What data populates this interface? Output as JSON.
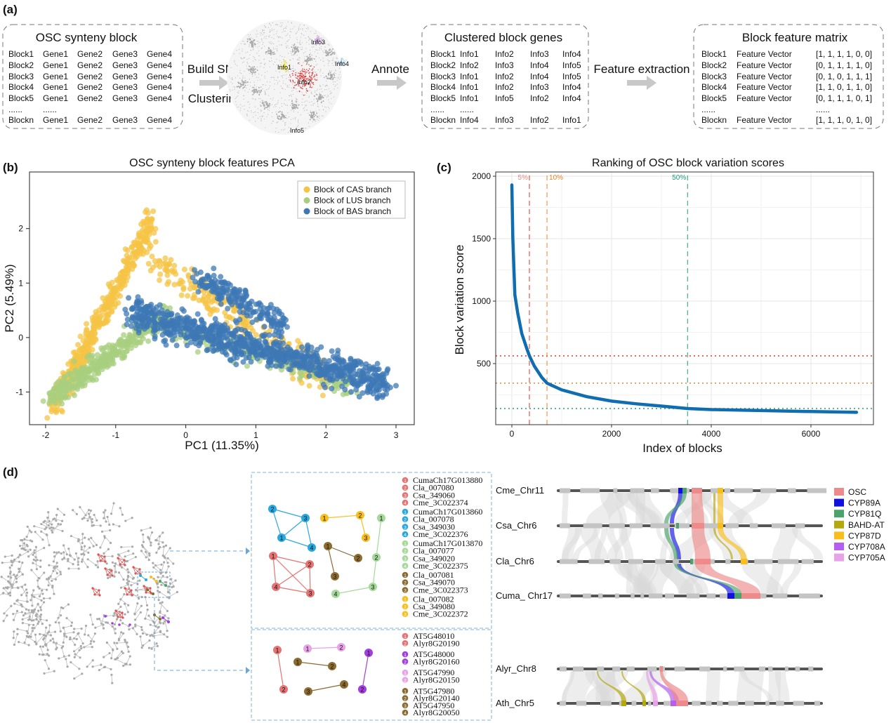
{
  "panel_labels": {
    "a": "(a)",
    "b": "(b)",
    "c": "(c)",
    "d": "(d)"
  },
  "panel_a": {
    "synteny_block": {
      "title": "OSC synteny block",
      "rows": [
        [
          "Block1",
          "Gene1",
          "Gene2",
          "Gene3",
          "Gene4"
        ],
        [
          "Block2",
          "Gene1",
          "Gene2",
          "Gene3",
          "Gene4"
        ],
        [
          "Block3",
          "Gene1",
          "Gene2",
          "Gene3",
          "Gene4"
        ],
        [
          "Block4",
          "Gene1",
          "Gene2",
          "Gene3",
          "Gene4"
        ],
        [
          "Block5",
          "Gene1",
          "Gene2",
          "Gene3",
          "Gene4"
        ],
        [
          "......",
          "......",
          "",
          "",
          ""
        ],
        [
          "Blockn",
          "Gene1",
          "Gene2",
          "Gene3",
          "Gene4"
        ]
      ]
    },
    "step1_top": "Build SNN",
    "step1_bottom": "Clustering",
    "network_labels": {
      "info3": "Info3",
      "info1": "Info1",
      "info4": "Info4",
      "info2": "info2",
      "info5": "Info5"
    },
    "step2": "Annote",
    "clustered": {
      "title": "Clustered block genes",
      "rows": [
        [
          "Block1",
          "Info1",
          "Info2",
          "Info3",
          "Info4"
        ],
        [
          "Block2",
          "Info2",
          "Info3",
          "Info4",
          "Info5"
        ],
        [
          "Block3",
          "Info1",
          "Info2",
          "Info4",
          "Info5"
        ],
        [
          "Block4",
          "Info1",
          "Info2",
          "Info3",
          "Info4"
        ],
        [
          "Block5",
          "Info1",
          "Info5",
          "Info2",
          "Info4"
        ],
        [
          "......",
          "......",
          "",
          "",
          ""
        ],
        [
          "Blockn",
          "Info4",
          "Info3",
          "Info2",
          "Info1"
        ]
      ]
    },
    "step3": "Feature extraction",
    "feature_matrix": {
      "title": "Block feature matrix",
      "rows": [
        [
          "Block1",
          "Feature Vector",
          "[1, 1, 1, 1, 0, 0]"
        ],
        [
          "Block2",
          "Feature Vector",
          "[0, 1, 1, 1, 1, 0]"
        ],
        [
          "Block3",
          "Feature Vector",
          "[0, 1, 0, 1, 1, 1]"
        ],
        [
          "Block4",
          "Feature Vector",
          "[1, 1, 0, 1, 1, 0]"
        ],
        [
          "Block5",
          "Feature Vector",
          "[0, 1, 1, 1, 0, 1]"
        ],
        [
          "......",
          "",
          "......"
        ],
        [
          "Blockn",
          "Feature Vector",
          "[1, 1, 1, 0, 1, 0]"
        ]
      ]
    }
  },
  "chart_data": [
    {
      "type": "scatter",
      "title": "OSC synteny block features PCA",
      "xlabel": "PC1 (11.35%)",
      "ylabel": "PC2 (5.49%)",
      "xlim": [
        -2.23,
        3.26
      ],
      "ylim": [
        -1.6,
        3.04
      ],
      "xticks": [
        -2,
        -1,
        0,
        1,
        2,
        3
      ],
      "yticks": [
        -1,
        0,
        1,
        2
      ],
      "grid": false,
      "legend_position": "top-right",
      "series": [
        {
          "name": "Block of CAS branch",
          "color": "#f6c445",
          "x_range": [
            -2,
            2.2
          ],
          "y_range": [
            -1.4,
            2.8
          ]
        },
        {
          "name": "Block of LUS branch",
          "color": "#a8cf7f",
          "x_range": [
            -1.9,
            2.5
          ],
          "y_range": [
            -1.2,
            1.1
          ]
        },
        {
          "name": "Block of BAS branch",
          "color": "#3d78b5",
          "x_range": [
            -1.2,
            3
          ],
          "y_range": [
            -1.1,
            1.9
          ]
        }
      ]
    },
    {
      "type": "line",
      "title": "Ranking of OSC block variation scores",
      "xlabel": "Index of blocks",
      "ylabel": "Block variation score",
      "xlim": [
        -324,
        7254
      ],
      "ylim": [
        11,
        2034
      ],
      "xticks": [
        0,
        2000,
        4000,
        6000
      ],
      "yticks": [
        500,
        1000,
        1500,
        2000
      ],
      "grid": true,
      "series": [
        {
          "color": "#0f6db0",
          "x": [
            0,
            20,
            60,
            120,
            200,
            300,
            352,
            450,
            600,
            705,
            1000,
            1500,
            2000,
            2500,
            3000,
            3525,
            4000,
            5000,
            6000,
            6915
          ],
          "y": [
            1930,
            1500,
            1050,
            900,
            740,
            620,
            562,
            480,
            390,
            343,
            290,
            235,
            200,
            178,
            160,
            140,
            132,
            124,
            116,
            110
          ]
        }
      ],
      "thresholds": [
        {
          "label": "5%",
          "x": 352,
          "y": 562,
          "color": "#e3342f"
        },
        {
          "label": "10%",
          "x": 705,
          "y": 343,
          "color": "#e8862b"
        },
        {
          "label": "50%",
          "x": 3525,
          "y": 140,
          "color": "#1b9e77"
        }
      ]
    }
  ],
  "panel_d": {
    "box1_legend": [
      {
        "color": "#e57373",
        "items": [
          "CumaCh17G013880",
          "Cla_007080",
          "Csa_349060",
          "Cme_3C022374"
        ]
      },
      {
        "color": "#29a8e0",
        "items": [
          "CumaCh17G013860",
          "Cla_007078",
          "Csa_349030",
          "Cme_3C022376"
        ]
      },
      {
        "color": "#a5d99a",
        "items": [
          "CumaCh17G013870",
          "Cla_007077",
          "Csa_349020",
          "Cme_3C022375"
        ]
      },
      {
        "color": "#8c6b30",
        "items": [
          "Cla_007081",
          "Csa_349070",
          "Cme_3C022373"
        ]
      },
      {
        "color": "#f7be1c",
        "items": [
          "Cla_007082",
          "Csa_349080",
          "Cme_3C022372"
        ]
      }
    ],
    "box2_legend": [
      {
        "color": "#e57373",
        "items": [
          "AT5G48010",
          "Alyr8G20190"
        ]
      },
      {
        "color": "#a23ee0",
        "items": [
          "AT5G48000",
          "Alyr8G20160"
        ]
      },
      {
        "color": "#e8a3e8",
        "items": [
          "AT5G47990",
          "Alyr8G20150"
        ]
      },
      {
        "color": "#8c6b30",
        "items": [
          "AT5G47980",
          "Alyr8G20140",
          "AT5G47950",
          "Alyr8G20050"
        ]
      }
    ],
    "chromosomes": [
      "Cme_Chr11",
      "Csa_Chr6",
      "Cla_Chr6",
      "Cuma_ Chr17",
      "Alyr_Chr8",
      "Ath_Chr5"
    ],
    "gene_families": [
      {
        "name": "OSC",
        "color": "#ee8a8a"
      },
      {
        "name": "CYP89A",
        "color": "#1010e0"
      },
      {
        "name": "CYP81Q",
        "color": "#4aa36a"
      },
      {
        "name": "BAHD-AT",
        "color": "#b5a80f"
      },
      {
        "name": "CYP87D",
        "color": "#f7be1c"
      },
      {
        "name": "CYP708A",
        "color": "#b55ef0"
      },
      {
        "name": "CYP705A",
        "color": "#e8a3e8"
      }
    ]
  }
}
